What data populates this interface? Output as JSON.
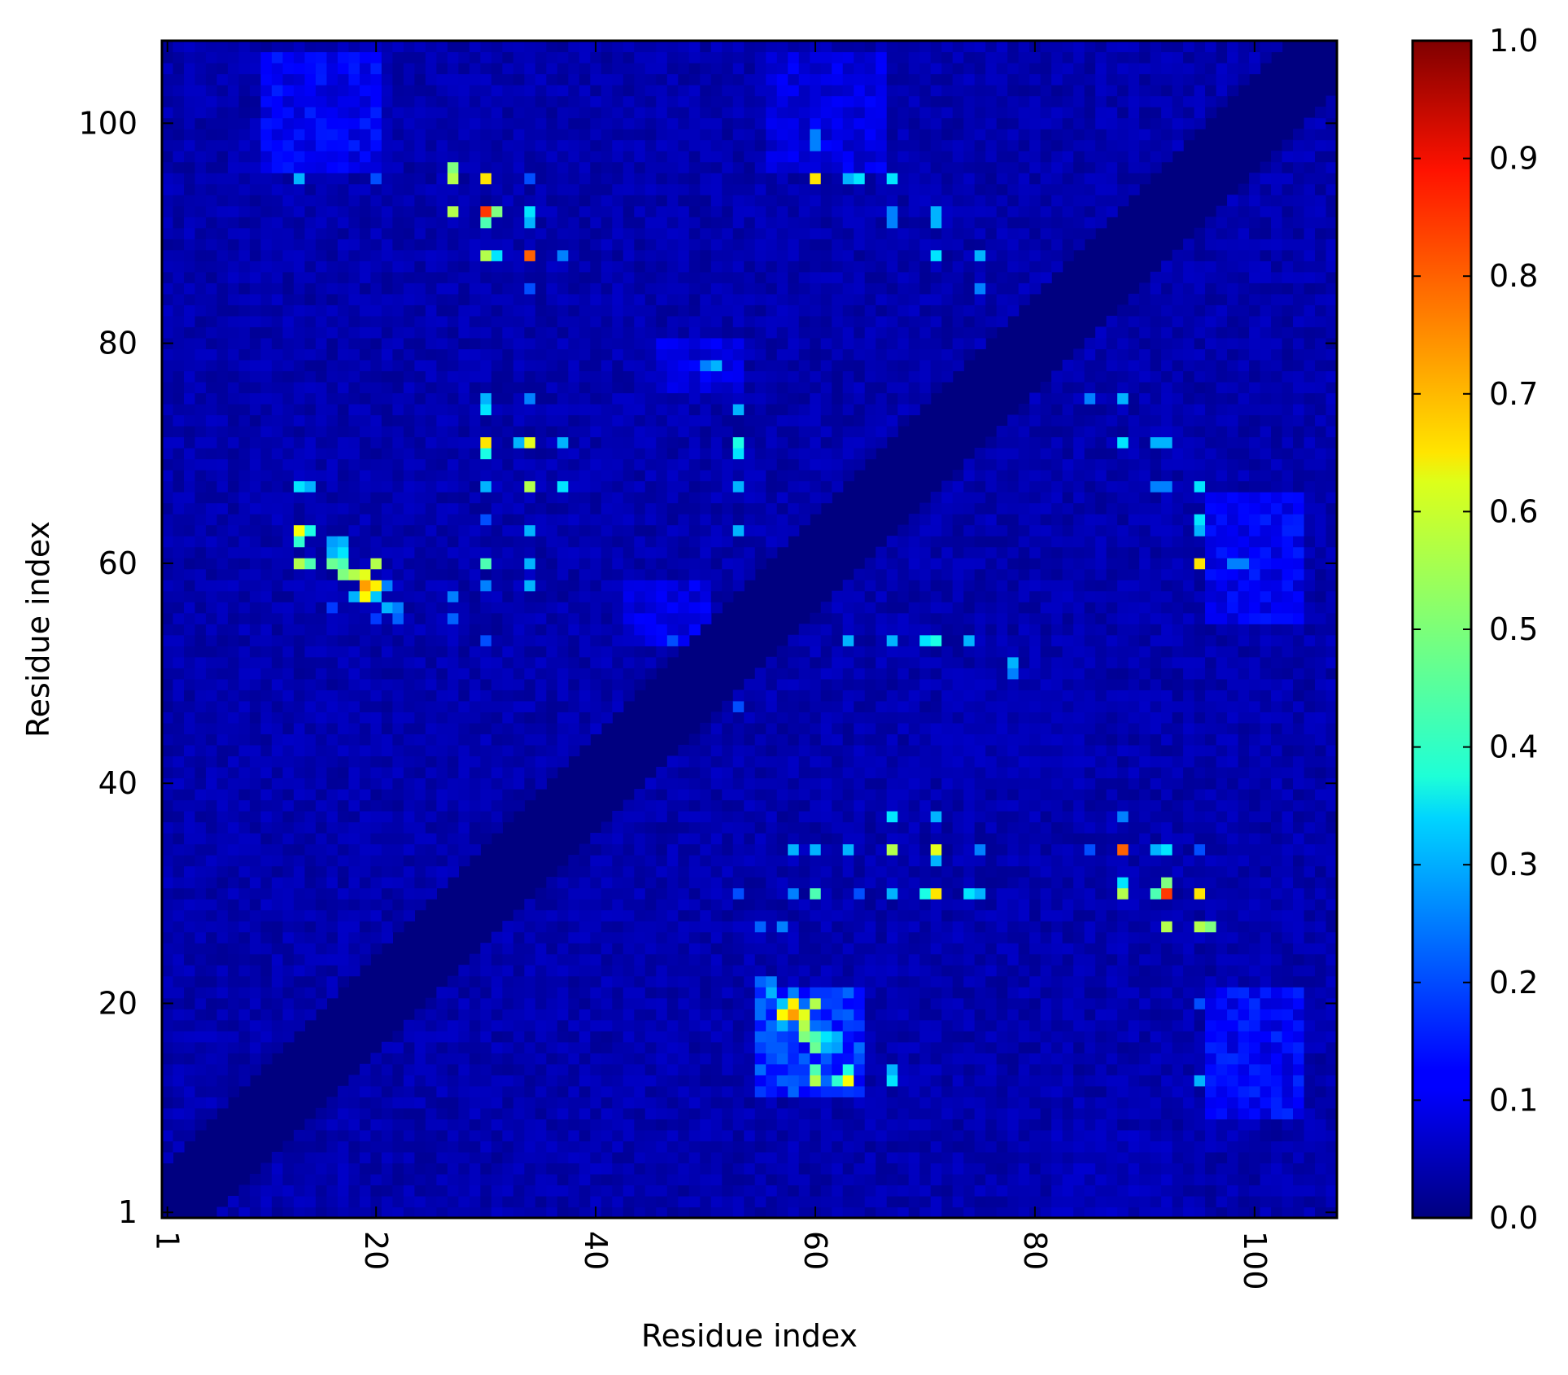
{
  "chart_data": {
    "type": "heatmap",
    "title": "",
    "xlabel": "Residue index",
    "ylabel": "Residue index",
    "n_residues": 107,
    "xlim": [
      1,
      107
    ],
    "ylim": [
      1,
      107
    ],
    "x_ticks": [
      "1",
      "20",
      "40",
      "60",
      "80",
      "100"
    ],
    "y_ticks": [
      "1",
      "20",
      "40",
      "60",
      "80",
      "100"
    ],
    "x_tick_values": [
      1,
      20,
      40,
      60,
      80,
      100
    ],
    "y_tick_values": [
      1,
      20,
      40,
      60,
      80,
      100
    ],
    "x_tick_rotation": 90,
    "colormap": "jet",
    "colorbar": {
      "min": 0.0,
      "max": 1.0,
      "ticks": [
        "0.0",
        "0.1",
        "0.2",
        "0.3",
        "0.4",
        "0.5",
        "0.6",
        "0.7",
        "0.8",
        "0.9",
        "1.0"
      ],
      "tick_values": [
        0.0,
        0.1,
        0.2,
        0.3,
        0.4,
        0.5,
        0.6,
        0.7,
        0.8,
        0.9,
        1.0
      ]
    },
    "symmetric": true,
    "diagonal_band_halfwidth": 4,
    "background_level": 0.02,
    "regions": [
      {
        "i": [
          55,
          64
        ],
        "j": [
          12,
          21
        ],
        "value": 0.18
      },
      {
        "i": [
          96,
          104
        ],
        "j": [
          10,
          21
        ],
        "value": 0.13
      },
      {
        "i": [
          96,
          104
        ],
        "j": [
          55,
          66
        ],
        "value": 0.12
      },
      {
        "i": [
          56,
          66
        ],
        "j": [
          96,
          106
        ],
        "value": 0.1
      },
      {
        "i": [
          10,
          20
        ],
        "j": [
          96,
          106
        ],
        "value": 0.12
      },
      {
        "i": [
          43,
          50
        ],
        "j": [
          53,
          58
        ],
        "value": 0.1
      },
      {
        "i": [
          46,
          53
        ],
        "j": [
          76,
          80
        ],
        "value": 0.1
      },
      {
        "i": [
          82,
          92
        ],
        "j": [
          1,
          8
        ],
        "value": 0.06
      },
      {
        "i": [
          72,
          84
        ],
        "j": [
          40,
          50
        ],
        "value": 0.05
      }
    ],
    "contacts": [
      {
        "i": 57,
        "j": 19,
        "value": 0.63
      },
      {
        "i": 58,
        "j": 19,
        "value": 0.72
      },
      {
        "i": 58,
        "j": 20,
        "value": 0.64
      },
      {
        "i": 59,
        "j": 19,
        "value": 0.6
      },
      {
        "i": 59,
        "j": 18,
        "value": 0.55
      },
      {
        "i": 60,
        "j": 20,
        "value": 0.55
      },
      {
        "i": 59,
        "j": 17,
        "value": 0.5
      },
      {
        "i": 60,
        "j": 17,
        "value": 0.45
      },
      {
        "i": 60,
        "j": 16,
        "value": 0.48
      },
      {
        "i": 61,
        "j": 17,
        "value": 0.35
      },
      {
        "i": 61,
        "j": 16,
        "value": 0.3
      },
      {
        "i": 62,
        "j": 17,
        "value": 0.3
      },
      {
        "i": 62,
        "j": 16,
        "value": 0.28
      },
      {
        "i": 60,
        "j": 14,
        "value": 0.45
      },
      {
        "i": 60,
        "j": 13,
        "value": 0.55
      },
      {
        "i": 63,
        "j": 13,
        "value": 0.62
      },
      {
        "i": 63,
        "j": 14,
        "value": 0.4
      },
      {
        "i": 62,
        "j": 13,
        "value": 0.42
      },
      {
        "i": 56,
        "j": 21,
        "value": 0.3
      },
      {
        "i": 57,
        "j": 20,
        "value": 0.32
      },
      {
        "i": 58,
        "j": 21,
        "value": 0.25
      },
      {
        "i": 55,
        "j": 22,
        "value": 0.22
      },
      {
        "i": 56,
        "j": 22,
        "value": 0.25
      },
      {
        "i": 57,
        "j": 18,
        "value": 0.3
      },
      {
        "i": 67,
        "j": 13,
        "value": 0.35
      },
      {
        "i": 67,
        "j": 14,
        "value": 0.3
      },
      {
        "i": 88,
        "j": 34,
        "value": 0.78
      },
      {
        "i": 92,
        "j": 30,
        "value": 0.82
      },
      {
        "i": 88,
        "j": 30,
        "value": 0.55
      },
      {
        "i": 92,
        "j": 31,
        "value": 0.5
      },
      {
        "i": 92,
        "j": 34,
        "value": 0.35
      },
      {
        "i": 91,
        "j": 30,
        "value": 0.45
      },
      {
        "i": 91,
        "j": 34,
        "value": 0.3
      },
      {
        "i": 95,
        "j": 30,
        "value": 0.65
      },
      {
        "i": 95,
        "j": 27,
        "value": 0.55
      },
      {
        "i": 96,
        "j": 27,
        "value": 0.5
      },
      {
        "i": 92,
        "j": 27,
        "value": 0.55
      },
      {
        "i": 95,
        "j": 34,
        "value": 0.2
      },
      {
        "i": 88,
        "j": 31,
        "value": 0.35
      },
      {
        "i": 85,
        "j": 34,
        "value": 0.2
      },
      {
        "i": 88,
        "j": 37,
        "value": 0.25
      },
      {
        "i": 71,
        "j": 34,
        "value": 0.6
      },
      {
        "i": 71,
        "j": 30,
        "value": 0.65
      },
      {
        "i": 67,
        "j": 34,
        "value": 0.55
      },
      {
        "i": 67,
        "j": 30,
        "value": 0.3
      },
      {
        "i": 74,
        "j": 30,
        "value": 0.35
      },
      {
        "i": 75,
        "j": 30,
        "value": 0.3
      },
      {
        "i": 71,
        "j": 33,
        "value": 0.3
      },
      {
        "i": 70,
        "j": 30,
        "value": 0.4
      },
      {
        "i": 60,
        "j": 30,
        "value": 0.45
      },
      {
        "i": 60,
        "j": 34,
        "value": 0.3
      },
      {
        "i": 58,
        "j": 34,
        "value": 0.3
      },
      {
        "i": 58,
        "j": 30,
        "value": 0.25
      },
      {
        "i": 63,
        "j": 34,
        "value": 0.3
      },
      {
        "i": 64,
        "j": 30,
        "value": 0.2
      },
      {
        "i": 67,
        "j": 37,
        "value": 0.35
      },
      {
        "i": 71,
        "j": 37,
        "value": 0.3
      },
      {
        "i": 75,
        "j": 34,
        "value": 0.25
      },
      {
        "i": 57,
        "j": 27,
        "value": 0.25
      },
      {
        "i": 55,
        "j": 27,
        "value": 0.22
      },
      {
        "i": 53,
        "j": 30,
        "value": 0.2
      },
      {
        "i": 63,
        "j": 53,
        "value": 0.3
      },
      {
        "i": 67,
        "j": 53,
        "value": 0.3
      },
      {
        "i": 70,
        "j": 53,
        "value": 0.35
      },
      {
        "i": 71,
        "j": 53,
        "value": 0.25
      },
      {
        "i": 74,
        "j": 53,
        "value": 0.3
      },
      {
        "i": 78,
        "j": 51,
        "value": 0.3
      },
      {
        "i": 88,
        "j": 71,
        "value": 0.35
      },
      {
        "i": 91,
        "j": 71,
        "value": 0.3
      },
      {
        "i": 92,
        "j": 71,
        "value": 0.3
      },
      {
        "i": 88,
        "j": 75,
        "value": 0.3
      },
      {
        "i": 85,
        "j": 75,
        "value": 0.25
      },
      {
        "i": 95,
        "j": 67,
        "value": 0.35
      },
      {
        "i": 95,
        "j": 64,
        "value": 0.35
      },
      {
        "i": 95,
        "j": 63,
        "value": 0.3
      },
      {
        "i": 95,
        "j": 60,
        "value": 0.65
      },
      {
        "i": 92,
        "j": 67,
        "value": 0.25
      },
      {
        "i": 91,
        "j": 67,
        "value": 0.25
      },
      {
        "i": 98,
        "j": 60,
        "value": 0.25
      },
      {
        "i": 99,
        "j": 60,
        "value": 0.25
      },
      {
        "i": 56,
        "j": 16,
        "value": 0.18
      },
      {
        "i": 55,
        "j": 20,
        "value": 0.18
      },
      {
        "i": 95,
        "j": 13,
        "value": 0.3
      },
      {
        "i": 95,
        "j": 20,
        "value": 0.2
      },
      {
        "i": 53,
        "j": 74,
        "value": 0.3
      },
      {
        "i": 53,
        "j": 71,
        "value": 0.4
      },
      {
        "i": 53,
        "j": 67,
        "value": 0.3
      },
      {
        "i": 53,
        "j": 63,
        "value": 0.3
      },
      {
        "i": 50,
        "j": 78,
        "value": 0.25
      },
      {
        "i": 47,
        "j": 53,
        "value": 0.2
      },
      {
        "i": 71,
        "j": 92,
        "value": 0.3
      },
      {
        "i": 71,
        "j": 91,
        "value": 0.3
      },
      {
        "i": 75,
        "j": 88,
        "value": 0.3
      },
      {
        "i": 75,
        "j": 85,
        "value": 0.25
      },
      {
        "i": 67,
        "j": 95,
        "value": 0.3
      },
      {
        "i": 13,
        "j": 60,
        "value": 0.25
      },
      {
        "i": 13,
        "j": 63,
        "value": 0.2
      }
    ]
  }
}
